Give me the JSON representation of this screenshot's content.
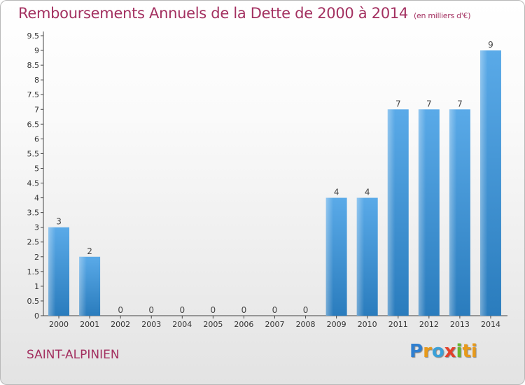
{
  "title": "Remboursements Annuels de la Dette de 2000 à 2014",
  "subtitle": "(en milliers d'€)",
  "town": "SAINT-ALPINIEN",
  "brand": [
    "P",
    "r",
    "o",
    "x",
    "i",
    "ti"
  ],
  "colors": {
    "bar_top": "#5aaae8",
    "bar_bottom": "#2a7cbd",
    "title": "#a33060"
  },
  "chart_data": {
    "type": "bar",
    "title": "Remboursements Annuels de la Dette de 2000 à 2014",
    "subtitle": "(en milliers d'€)",
    "xlabel": "",
    "ylabel": "",
    "ylim": [
      0,
      9.5
    ],
    "yticks": [
      {
        "value": 0,
        "label": "0"
      },
      {
        "value": 0.5,
        "label": "0.5"
      },
      {
        "value": 1,
        "label": "1"
      },
      {
        "value": 1.5,
        "label": "1.5"
      },
      {
        "value": 2,
        "label": "2"
      },
      {
        "value": 2.5,
        "label": "2.5"
      },
      {
        "value": 3,
        "label": "3"
      },
      {
        "value": 3.5,
        "label": "3.5"
      },
      {
        "value": 4,
        "label": "4"
      },
      {
        "value": 4.5,
        "label": "4.5"
      },
      {
        "value": 5,
        "label": "5"
      },
      {
        "value": 5.5,
        "label": "5.5"
      },
      {
        "value": 6,
        "label": "6"
      },
      {
        "value": 6.5,
        "label": "6.5"
      },
      {
        "value": 7,
        "label": "7"
      },
      {
        "value": 7.5,
        "label": "7.5"
      },
      {
        "value": 8,
        "label": "8"
      },
      {
        "value": 8.5,
        "label": "8.5"
      },
      {
        "value": 9,
        "label": "9"
      },
      {
        "value": 9.5,
        "label": "9.5"
      }
    ],
    "categories": [
      "2000",
      "2001",
      "2002",
      "2003",
      "2004",
      "2005",
      "2006",
      "2007",
      "2008",
      "2009",
      "2010",
      "2011",
      "2012",
      "2013",
      "2014"
    ],
    "values": [
      3,
      2,
      0,
      0,
      0,
      0,
      0,
      0,
      0,
      4,
      4,
      7,
      7,
      7,
      9
    ],
    "data_labels": [
      "3",
      "2",
      "0",
      "0",
      "0",
      "0",
      "0",
      "0",
      "0",
      "4",
      "4",
      "7",
      "7",
      "7",
      "9"
    ],
    "grid": false
  }
}
